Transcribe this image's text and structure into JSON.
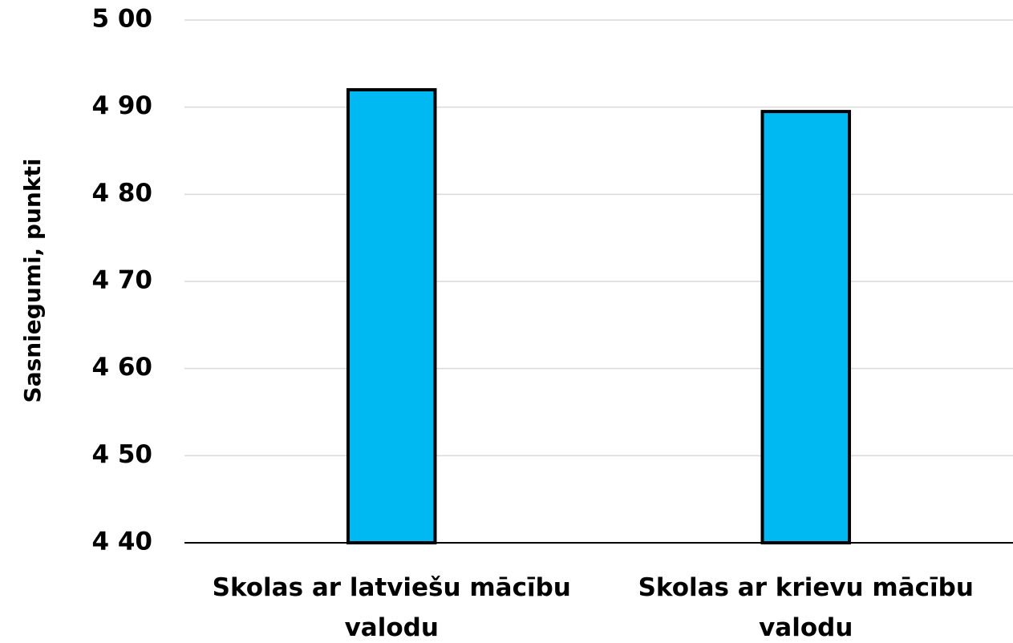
{
  "chart_data": {
    "type": "bar",
    "y_label": "Sasniegumi, punkti",
    "categories": [
      "Skolas ar latviešu mācību valodu",
      "Skolas ar krievu mācību valodu"
    ],
    "values": [
      492,
      489.5
    ],
    "color": "#00b9f2",
    "ylim": [
      440,
      500
    ],
    "yticks": [
      {
        "value": 440,
        "label": "4 40"
      },
      {
        "value": 450,
        "label": "4 50"
      },
      {
        "value": 460,
        "label": "4 60"
      },
      {
        "value": 470,
        "label": "4 70"
      },
      {
        "value": 480,
        "label": "4 80"
      },
      {
        "value": 490,
        "label": "4 90"
      },
      {
        "value": 500,
        "label": "5 00"
      }
    ],
    "grid": true
  }
}
